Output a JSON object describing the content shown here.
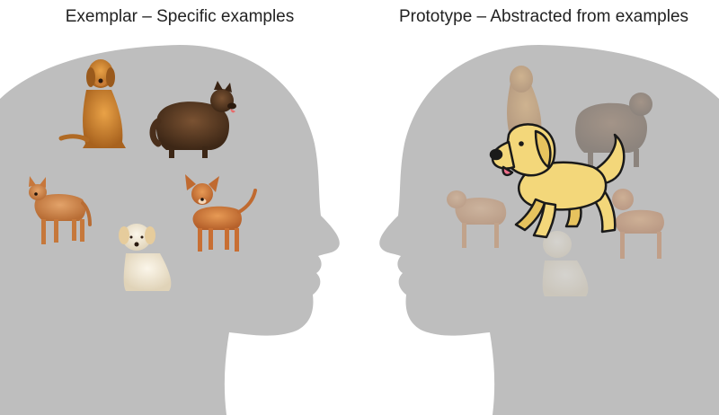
{
  "titles": {
    "left": "Exemplar – Specific examples",
    "right": "Prototype – Abstracted from examples"
  },
  "colors": {
    "head": "#bebebe",
    "background": "#ffffff",
    "prototype_dog": "#f3d77a",
    "text": "#222222"
  }
}
